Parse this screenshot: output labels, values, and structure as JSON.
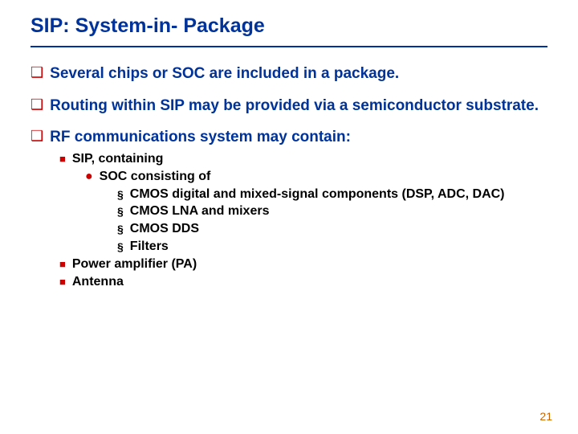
{
  "title": "SIP: System-in- Package",
  "bullets": {
    "b1": "Several chips or SOC are included in a package.",
    "b2": "Routing within SIP may be provided via a semiconductor substrate.",
    "b3": "RF communications system may contain:"
  },
  "sub": {
    "s1": "SIP, containing",
    "s2": "SOC consisting of",
    "s3": "CMOS digital and mixed-signal components (DSP, ADC, DAC)",
    "s4": "CMOS LNA and mixers",
    "s5": "CMOS DDS",
    "s6": "Filters",
    "s7": "Power amplifier (PA)",
    "s8": "Antenna"
  },
  "pageNumber": "21"
}
